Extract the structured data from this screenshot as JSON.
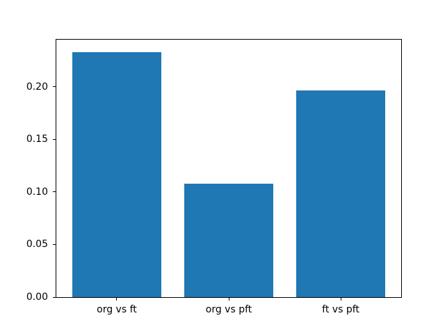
{
  "figure": {
    "background": "#ffffff",
    "title": ""
  },
  "chart_data": {
    "type": "bar",
    "categories": [
      "org vs ft",
      "org vs pft",
      "ft vs pft"
    ],
    "values": [
      0.233,
      0.108,
      0.197
    ],
    "title": "",
    "xlabel": "",
    "ylabel": "",
    "ylim": [
      0,
      0.245
    ],
    "xlim": [
      -0.54,
      2.54
    ],
    "bar_width": 0.8,
    "yticks": [
      0.0,
      0.05,
      0.1,
      0.15,
      0.2
    ],
    "ytick_labels": [
      "0.00",
      "0.05",
      "0.10",
      "0.15",
      "0.20"
    ],
    "grid": false,
    "legend": null,
    "bar_color": "#1f77b4",
    "spine_color": "#000000",
    "tick_color": "#000000",
    "text_color": "#000000"
  }
}
